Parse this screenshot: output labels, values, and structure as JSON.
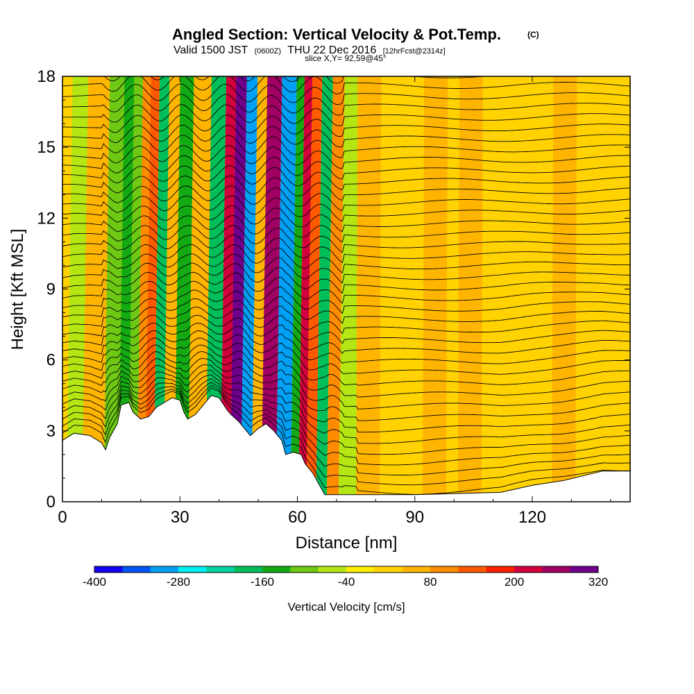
{
  "chart_data": {
    "type": "heatmap",
    "title": "Angled Section: Vertical Velocity & Pot.Temp.",
    "title_units": "(C)",
    "subtitle": {
      "part1": "Valid 1500 JST",
      "part2": "(0600Z)",
      "part3": "THU 22 Dec 2016",
      "part4": "[12hrFcst@2314z]"
    },
    "slice_text": "slice X,Y= 92,59@45°",
    "xlabel": "Distance [nm]",
    "ylabel": "Height [Kft MSL]",
    "xlim": [
      0,
      145
    ],
    "ylim": [
      0,
      18
    ],
    "x_ticks": [
      0,
      30,
      60,
      90,
      120
    ],
    "y_ticks": [
      0,
      3,
      6,
      9,
      12,
      15,
      18
    ],
    "colorbar": {
      "title": "Vertical Velocity [cm/s]",
      "tick_labels": [
        "-400",
        "-280",
        "-160",
        "-40",
        "80",
        "200",
        "320"
      ],
      "levels": [
        -400,
        -360,
        -320,
        -280,
        -240,
        -200,
        -160,
        -120,
        -80,
        -40,
        0,
        40,
        80,
        120,
        160,
        200,
        240,
        280,
        320
      ],
      "colors": [
        "#1400f0",
        "#0055f5",
        "#00a0f5",
        "#00f0f0",
        "#00d2a0",
        "#00be5a",
        "#14aa14",
        "#6ec814",
        "#b4e614",
        "#ffee00",
        "#ffd200",
        "#ffb400",
        "#ff8c00",
        "#ff5a00",
        "#ff1e00",
        "#d2003c",
        "#a00064",
        "#6e008c"
      ]
    },
    "vertical_velocity_bands": [
      {
        "x": 2,
        "value": -80
      },
      {
        "x": 8,
        "value": 60
      },
      {
        "x": 13,
        "value": -90
      },
      {
        "x": 15.5,
        "value": -160
      },
      {
        "x": 18,
        "value": -120
      },
      {
        "x": 20,
        "value": 80
      },
      {
        "x": 22,
        "value": 140
      },
      {
        "x": 24.5,
        "value": -170
      },
      {
        "x": 27,
        "value": 60
      },
      {
        "x": 30,
        "value": -140
      },
      {
        "x": 34,
        "value": 40
      },
      {
        "x": 39,
        "value": -170
      },
      {
        "x": 41.5,
        "value": 200
      },
      {
        "x": 44,
        "value": 280
      },
      {
        "x": 47,
        "value": -320
      },
      {
        "x": 49.5,
        "value": 40
      },
      {
        "x": 52,
        "value": 240
      },
      {
        "x": 57,
        "value": -300
      },
      {
        "x": 59.5,
        "value": -150
      },
      {
        "x": 61,
        "value": 230
      },
      {
        "x": 63.5,
        "value": 120
      },
      {
        "x": 66,
        "value": -180
      },
      {
        "x": 69,
        "value": 80
      },
      {
        "x": 72,
        "value": -60
      },
      {
        "x": 78,
        "value": 70
      },
      {
        "x": 95,
        "value": 40
      },
      {
        "x": 104,
        "value": 60
      },
      {
        "x": 128,
        "value": 50
      }
    ],
    "terrain_profile": [
      {
        "x": 0,
        "y": 2.6
      },
      {
        "x": 3,
        "y": 2.9
      },
      {
        "x": 7,
        "y": 2.8
      },
      {
        "x": 10,
        "y": 2.5
      },
      {
        "x": 11,
        "y": 2.2
      },
      {
        "x": 12,
        "y": 2.7
      },
      {
        "x": 14,
        "y": 3.3
      },
      {
        "x": 15,
        "y": 4.1
      },
      {
        "x": 17,
        "y": 4.2
      },
      {
        "x": 18,
        "y": 3.8
      },
      {
        "x": 20,
        "y": 3.5
      },
      {
        "x": 22,
        "y": 3.6
      },
      {
        "x": 24,
        "y": 4.0
      },
      {
        "x": 26,
        "y": 4.2
      },
      {
        "x": 28,
        "y": 4.4
      },
      {
        "x": 30,
        "y": 4.3
      },
      {
        "x": 31,
        "y": 3.8
      },
      {
        "x": 32,
        "y": 3.5
      },
      {
        "x": 34,
        "y": 3.7
      },
      {
        "x": 36,
        "y": 4.1
      },
      {
        "x": 38,
        "y": 4.5
      },
      {
        "x": 40,
        "y": 4.4
      },
      {
        "x": 42,
        "y": 3.9
      },
      {
        "x": 43,
        "y": 3.7
      },
      {
        "x": 45,
        "y": 3.4
      },
      {
        "x": 46,
        "y": 3.2
      },
      {
        "x": 47,
        "y": 3.0
      },
      {
        "x": 48,
        "y": 2.8
      },
      {
        "x": 50,
        "y": 3.1
      },
      {
        "x": 52,
        "y": 3.3
      },
      {
        "x": 54,
        "y": 3.0
      },
      {
        "x": 56,
        "y": 2.6
      },
      {
        "x": 57,
        "y": 2.0
      },
      {
        "x": 59,
        "y": 2.1
      },
      {
        "x": 61,
        "y": 2.0
      },
      {
        "x": 62,
        "y": 1.6
      },
      {
        "x": 64,
        "y": 1.2
      },
      {
        "x": 66,
        "y": 0.6
      },
      {
        "x": 67,
        "y": 0.3
      },
      {
        "x": 70,
        "y": 0.3
      },
      {
        "x": 90,
        "y": 0.3
      },
      {
        "x": 112,
        "y": 0.4
      },
      {
        "x": 120,
        "y": 0.7
      },
      {
        "x": 128,
        "y": 0.9
      },
      {
        "x": 138,
        "y": 1.3
      },
      {
        "x": 145,
        "y": 1.3
      }
    ],
    "theta_contours": {
      "base_height": 0.5,
      "spacing": 0.45,
      "count": 40
    }
  }
}
